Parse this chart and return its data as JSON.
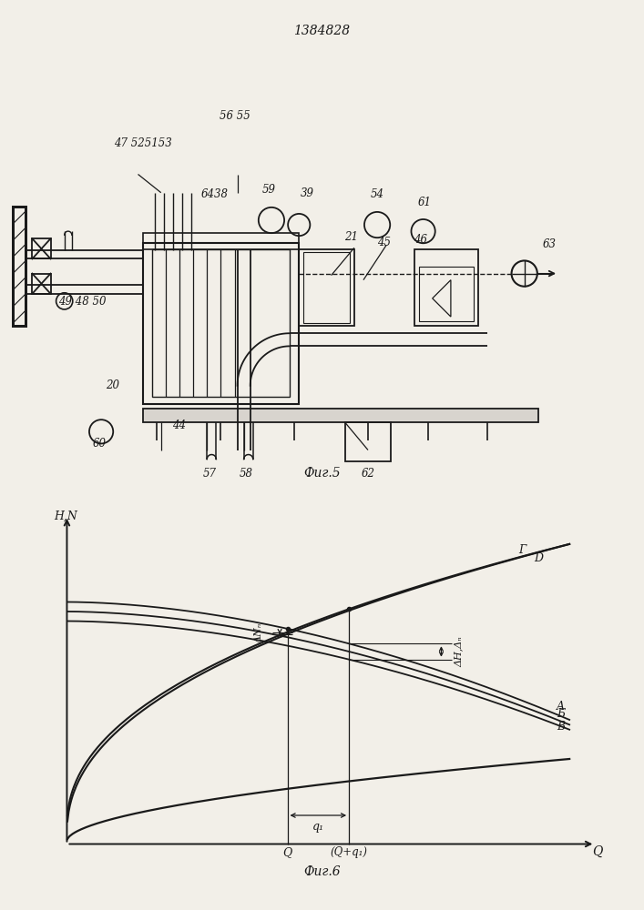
{
  "title": "1384828",
  "fig5_caption": "Фиг.5",
  "fig6_caption": "Фиг.6",
  "bg_color": "#f2efe8",
  "lc": "#1a1a1a"
}
